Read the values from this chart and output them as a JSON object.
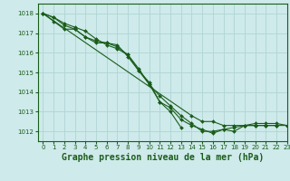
{
  "title": "Graphe pression niveau de la mer (hPa)",
  "background_color": "#ceeaea",
  "grid_color": "#b0d4d4",
  "line_color": "#1a5c1a",
  "xlim": [
    -0.5,
    23
  ],
  "ylim": [
    1011.5,
    1018.5
  ],
  "yticks": [
    1012,
    1013,
    1014,
    1015,
    1016,
    1017,
    1018
  ],
  "xticks": [
    0,
    1,
    2,
    3,
    4,
    5,
    6,
    7,
    8,
    9,
    10,
    11,
    12,
    13,
    14,
    15,
    16,
    17,
    18,
    19,
    20,
    21,
    22,
    23
  ],
  "series": [
    [
      1018.0,
      1017.8,
      1017.5,
      1017.3,
      1017.1,
      1016.7,
      1016.4,
      1016.2,
      1015.9,
      1015.1,
      1014.5,
      1013.5,
      1013.0,
      1012.2,
      null,
      null,
      null,
      null,
      null,
      null,
      null,
      null,
      null,
      null
    ],
    [
      1018.0,
      1017.8,
      1017.4,
      1017.2,
      1016.8,
      1016.5,
      1016.5,
      1016.3,
      1015.9,
      1015.2,
      1014.4,
      1013.5,
      1013.2,
      1012.6,
      1012.3,
      1012.1,
      1011.9,
      1012.1,
      1012.2,
      1012.3,
      1012.3,
      1012.3,
      1012.3,
      null
    ],
    [
      1018.0,
      1017.6,
      1017.2,
      1017.2,
      1016.8,
      1016.6,
      1016.5,
      1016.4,
      1015.8,
      1015.1,
      1014.4,
      1013.8,
      1013.3,
      1012.8,
      1012.4,
      1012.0,
      1012.0,
      1012.1,
      1012.0,
      1012.3,
      1012.4,
      1012.4,
      1012.4,
      1012.3
    ],
    [
      1018.0,
      null,
      null,
      null,
      null,
      null,
      null,
      null,
      null,
      null,
      null,
      null,
      null,
      null,
      1012.8,
      1012.5,
      1012.5,
      1012.3,
      1012.3,
      1012.3,
      1012.3,
      1012.3,
      1012.3,
      1012.3
    ]
  ],
  "markersize": 2.0,
  "linewidth": 0.8,
  "title_fontsize": 7,
  "tick_fontsize": 5
}
